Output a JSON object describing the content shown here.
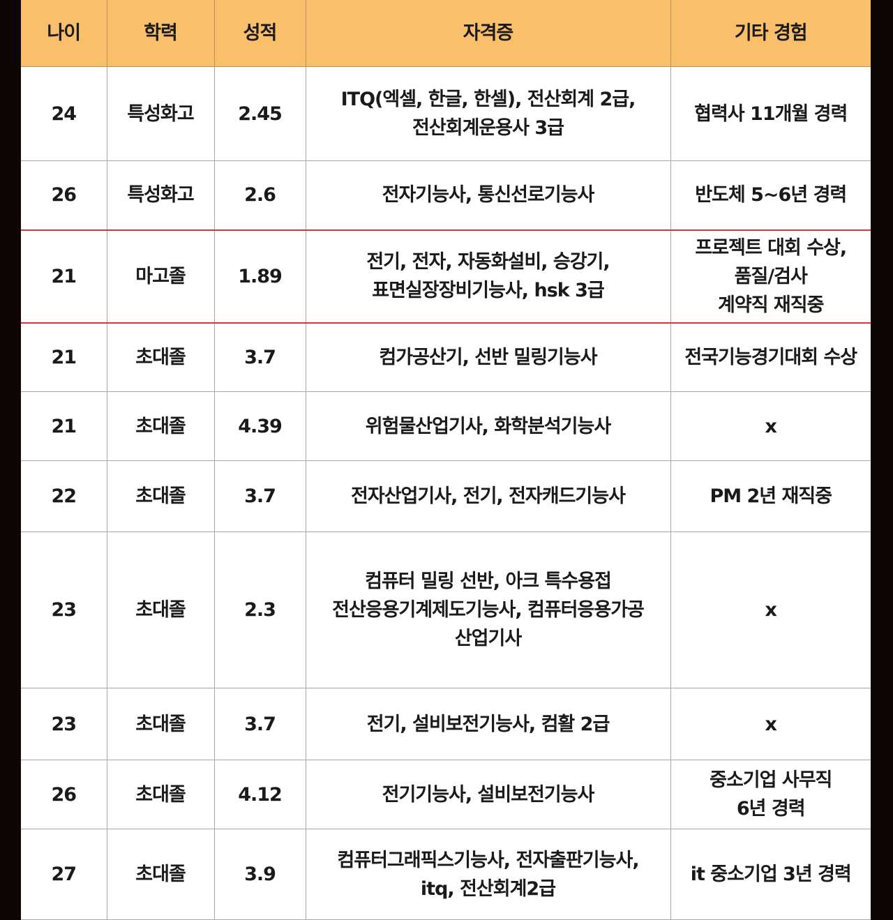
{
  "table": {
    "headers": [
      "나이",
      "학력",
      "성적",
      "자격증",
      "기타 경험"
    ],
    "rows": [
      {
        "age": "24",
        "education": "특성화고",
        "grade": "2.45",
        "certificates": "ITQ(엑셀, 한글, 한셀), 전산회계 2급,\n전산회계운용사 3급",
        "experience": "협력사 11개월 경력",
        "highlighted": false
      },
      {
        "age": "26",
        "education": "특성화고",
        "grade": "2.6",
        "certificates": "전자기능사, 통신선로기능사",
        "experience": "반도체 5~6년 경력",
        "highlighted": false
      },
      {
        "age": "21",
        "education": "마고졸",
        "grade": "1.89",
        "certificates": "전기, 전자, 자동화설비, 승강기,\n표면실장장비기능사, hsk 3급",
        "experience": "프로젝트 대회 수상,\n품질/검사\n계약직 재직중",
        "highlighted": true
      },
      {
        "age": "21",
        "education": "초대졸",
        "grade": "3.7",
        "certificates": "컴가공산기, 선반 밀링기능사",
        "experience": "전국기능경기대회 수상",
        "highlighted": false
      },
      {
        "age": "21",
        "education": "초대졸",
        "grade": "4.39",
        "certificates": "위험물산업기사, 화학분석기능사",
        "experience": "x",
        "highlighted": false
      },
      {
        "age": "22",
        "education": "초대졸",
        "grade": "3.7",
        "certificates": "전자산업기사, 전기, 전자캐드기능사",
        "experience": "PM 2년 재직중",
        "highlighted": false
      },
      {
        "age": "23",
        "education": "초대졸",
        "grade": "2.3",
        "certificates": "컴퓨터 밀링 선반, 아크 특수용접\n전산응용기계제도기능사, 컴퓨터응용가공\n산업기사",
        "experience": "x",
        "highlighted": false
      },
      {
        "age": "23",
        "education": "초대졸",
        "grade": "3.7",
        "certificates": "전기, 설비보전기능사, 컴활 2급",
        "experience": "x",
        "highlighted": false
      },
      {
        "age": "26",
        "education": "초대졸",
        "grade": "4.12",
        "certificates": "전기기능사, 설비보전기능사",
        "experience": "중소기업 사무직\n6년 경력",
        "highlighted": false
      },
      {
        "age": "27",
        "education": "초대졸",
        "grade": "3.9",
        "certificates": "컴퓨터그래픽스기능사, 전자출판기능사,\nitq, 전산회계2급",
        "experience": "it 중소기업 3년 경력",
        "highlighted": false
      }
    ]
  },
  "colors": {
    "header_bg": "#f9bf6b",
    "highlight_border": "#e0313a",
    "frame": "#0d0605"
  }
}
